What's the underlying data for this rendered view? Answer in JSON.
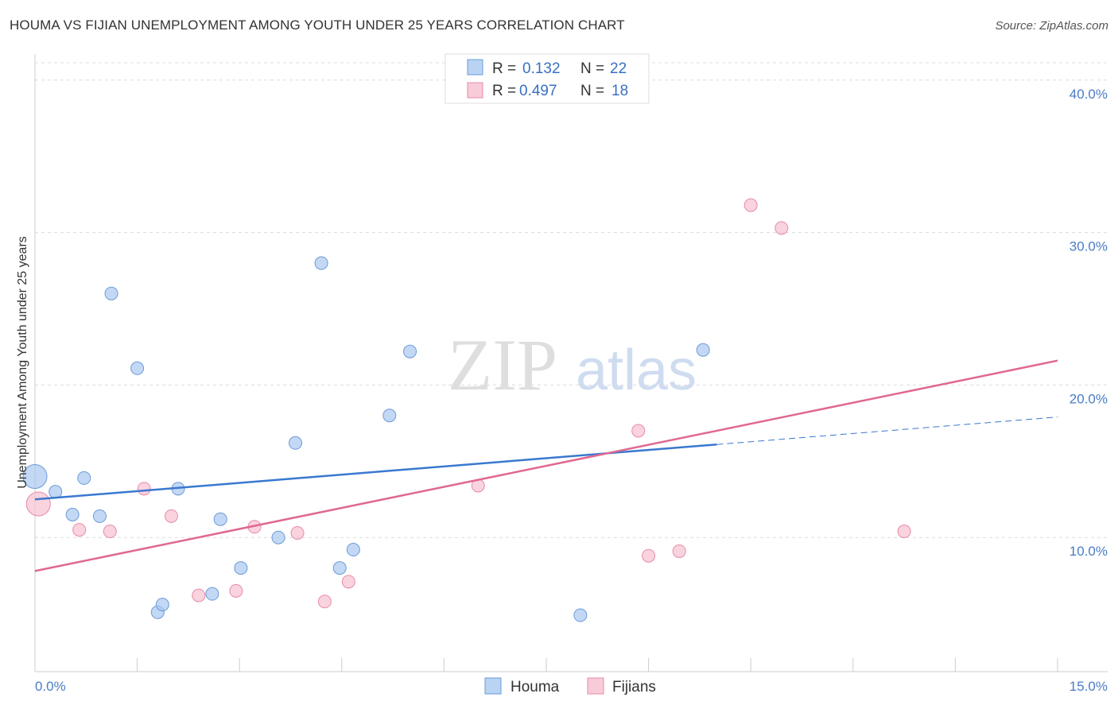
{
  "header": {
    "title": "HOUMA VS FIJIAN UNEMPLOYMENT AMONG YOUTH UNDER 25 YEARS CORRELATION CHART",
    "source": "Source: ZipAtlas.com"
  },
  "watermark": {
    "zip": "ZIP",
    "atlas": "atlas"
  },
  "legend": {
    "r_label": "R =",
    "n_label": "N =",
    "rows": [
      {
        "r": "0.132",
        "n": "22"
      },
      {
        "r": "0.497",
        "n": "18"
      }
    ]
  },
  "chart_data": {
    "type": "scatter",
    "title": "HOUMA VS FIJIAN UNEMPLOYMENT AMONG YOUTH UNDER 25 YEARS CORRELATION CHART",
    "xlabel": "",
    "ylabel": "Unemployment Among Youth under 25 years",
    "xlim": [
      0,
      15
    ],
    "ylim": [
      1.2,
      41.5
    ],
    "x_tick_labels": [
      "0.0%",
      "15.0%"
    ],
    "y_ticks": [
      10,
      20,
      30,
      40
    ],
    "y_tick_labels": [
      "10.0%",
      "20.0%",
      "30.0%",
      "40.0%"
    ],
    "grid": true,
    "legend_position": "top-center",
    "series": [
      {
        "name": "Houma",
        "color": "#a9c8f0",
        "stroke": "#6b9bd8",
        "line_color": "#3a78d0",
        "points": [
          {
            "x": 0.0,
            "y": 14.0,
            "big": true
          },
          {
            "x": 0.3,
            "y": 13.0
          },
          {
            "x": 0.55,
            "y": 11.5
          },
          {
            "x": 0.72,
            "y": 13.9
          },
          {
            "x": 0.95,
            "y": 11.4
          },
          {
            "x": 1.12,
            "y": 26.0
          },
          {
            "x": 1.5,
            "y": 21.1
          },
          {
            "x": 1.8,
            "y": 5.1
          },
          {
            "x": 1.87,
            "y": 5.6
          },
          {
            "x": 2.1,
            "y": 13.2
          },
          {
            "x": 2.6,
            "y": 6.3
          },
          {
            "x": 2.72,
            "y": 11.2
          },
          {
            "x": 3.02,
            "y": 8.0
          },
          {
            "x": 3.57,
            "y": 10.0
          },
          {
            "x": 3.82,
            "y": 16.2
          },
          {
            "x": 4.2,
            "y": 28.0
          },
          {
            "x": 4.47,
            "y": 8.0
          },
          {
            "x": 4.67,
            "y": 9.2
          },
          {
            "x": 5.2,
            "y": 18.0
          },
          {
            "x": 5.5,
            "y": 22.2
          },
          {
            "x": 8.0,
            "y": 4.9
          },
          {
            "x": 9.8,
            "y": 22.3
          }
        ],
        "trend": {
          "x0": 0,
          "y0": 12.5,
          "x1": 10.0,
          "y1": 16.1,
          "dash_to_x": 15,
          "dash_to_y": 17.9
        },
        "r": 0.132,
        "n": 22
      },
      {
        "name": "Fijians",
        "color": "#f6c0d0",
        "stroke": "#e88aa8",
        "line_color": "#e06890",
        "points": [
          {
            "x": 0.05,
            "y": 12.2,
            "big": true
          },
          {
            "x": 0.65,
            "y": 10.5
          },
          {
            "x": 1.1,
            "y": 10.4
          },
          {
            "x": 1.6,
            "y": 13.2
          },
          {
            "x": 2.0,
            "y": 11.4
          },
          {
            "x": 2.4,
            "y": 6.2
          },
          {
            "x": 2.95,
            "y": 6.5
          },
          {
            "x": 3.22,
            "y": 10.7
          },
          {
            "x": 3.85,
            "y": 10.3
          },
          {
            "x": 4.25,
            "y": 5.8
          },
          {
            "x": 4.6,
            "y": 7.1
          },
          {
            "x": 6.5,
            "y": 13.4
          },
          {
            "x": 8.85,
            "y": 17.0
          },
          {
            "x": 9.0,
            "y": 8.8
          },
          {
            "x": 9.45,
            "y": 9.1
          },
          {
            "x": 10.5,
            "y": 31.8
          },
          {
            "x": 10.95,
            "y": 30.3
          },
          {
            "x": 12.75,
            "y": 10.4
          }
        ],
        "trend": {
          "x0": 0,
          "y0": 7.8,
          "x1": 15,
          "y1": 21.6
        },
        "r": 0.497,
        "n": 18
      }
    ]
  }
}
